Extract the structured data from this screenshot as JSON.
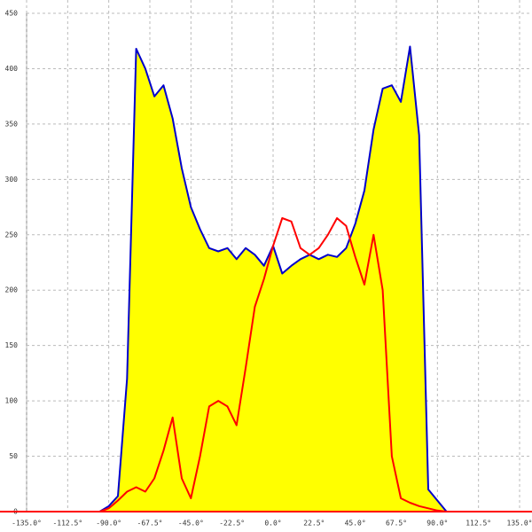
{
  "chart_data": {
    "type": "area",
    "x": [
      -95,
      -90,
      -85,
      -80,
      -75,
      -70,
      -65,
      -60,
      -55,
      -50,
      -45,
      -40,
      -35,
      -30,
      -25,
      -20,
      -15,
      -10,
      -5,
      0,
      5,
      10,
      15,
      20,
      25,
      30,
      35,
      40,
      45,
      50,
      55,
      60,
      65,
      70,
      75,
      80,
      85,
      90,
      95
    ],
    "series": [
      {
        "color": "#0000cc",
        "fill": "#ffff00",
        "values": [
          0,
          5,
          14,
          120,
          418,
          400,
          375,
          385,
          355,
          310,
          275,
          255,
          238,
          235,
          238,
          228,
          238,
          232,
          222,
          240,
          215,
          222,
          228,
          232,
          228,
          232,
          230,
          238,
          260,
          290,
          345,
          382,
          385,
          370,
          420,
          340,
          20,
          10,
          0
        ]
      },
      {
        "color": "#ff0000",
        "values": [
          0,
          3,
          10,
          18,
          22,
          18,
          30,
          55,
          85,
          30,
          12,
          50,
          95,
          100,
          95,
          78,
          130,
          185,
          210,
          240,
          265,
          262,
          238,
          232,
          238,
          250,
          265,
          258,
          230,
          205,
          250,
          200,
          50,
          12,
          8,
          5,
          3,
          1,
          0
        ]
      }
    ],
    "xlim": [
      -135,
      135
    ],
    "xticks": [
      {
        "value": -135,
        "label": "-135.0°"
      },
      {
        "value": -112.5,
        "label": "-112.5°"
      },
      {
        "value": -90,
        "label": "-90.0°"
      },
      {
        "value": -67.5,
        "label": "-67.5°"
      },
      {
        "value": -45,
        "label": "-45.0°"
      },
      {
        "value": -22.5,
        "label": "-22.5°"
      },
      {
        "value": 0,
        "label": "0.0°"
      },
      {
        "value": 22.5,
        "label": "22.5°"
      },
      {
        "value": 45,
        "label": "45.0°"
      },
      {
        "value": 67.5,
        "label": "67.5°"
      },
      {
        "value": 90,
        "label": "90.0°"
      },
      {
        "value": 112.5,
        "label": "112.5°"
      },
      {
        "value": 135,
        "label": "135.0°"
      }
    ],
    "ylim": [
      0,
      450
    ],
    "yticks": [
      0,
      50,
      100,
      150,
      200,
      250,
      300,
      350,
      400,
      450
    ],
    "grid": true
  }
}
